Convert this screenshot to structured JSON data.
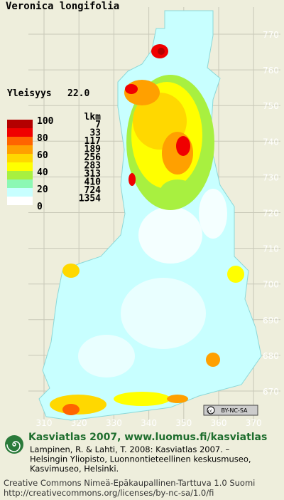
{
  "title": "Veronica longifolia",
  "frequency": {
    "label": "Yleisyys",
    "value": "22.0"
  },
  "legend": {
    "count_header": "lkm",
    "scale_labels": [
      "100",
      "80",
      "60",
      "40",
      "20",
      "0"
    ],
    "classes": [
      {
        "color": "#b40000",
        "count": "7"
      },
      {
        "color": "#f00000",
        "count": "33"
      },
      {
        "color": "#ff6400",
        "count": "117"
      },
      {
        "color": "#ffa000",
        "count": "189"
      },
      {
        "color": "#ffd800",
        "count": "256"
      },
      {
        "color": "#ffff00",
        "count": "283"
      },
      {
        "color": "#a8f040",
        "count": "313"
      },
      {
        "color": "#8cf8b4",
        "count": "410"
      },
      {
        "color": "#c8ffff",
        "count": "724"
      },
      {
        "color": "#ffffff",
        "count": "1354"
      }
    ]
  },
  "grid": {
    "x_labels": [
      310,
      320,
      330,
      340,
      350,
      360,
      370
    ],
    "y_labels": [
      670,
      680,
      690,
      700,
      710,
      720,
      730,
      740,
      750,
      760,
      770
    ]
  },
  "license_badge": "BY-NC-SA",
  "footer": {
    "headline": "Kasviatlas 2007, www.luomus.fi/kasviatlas",
    "citation": [
      "Lampinen, R. & Lahti, T. 2008: Kasviatlas 2007. –",
      "Helsingin Yliopisto, Luonnontieteellinen keskusmuseo,",
      "Kasvimuseo, Helsinki."
    ],
    "license": [
      "Creative Commons Nimeä-Epäkaupallinen-Tarttuva 1.0 Suomi",
      "http://creativecommons.org/licenses/by-nc-sa/1.0/fi"
    ]
  }
}
